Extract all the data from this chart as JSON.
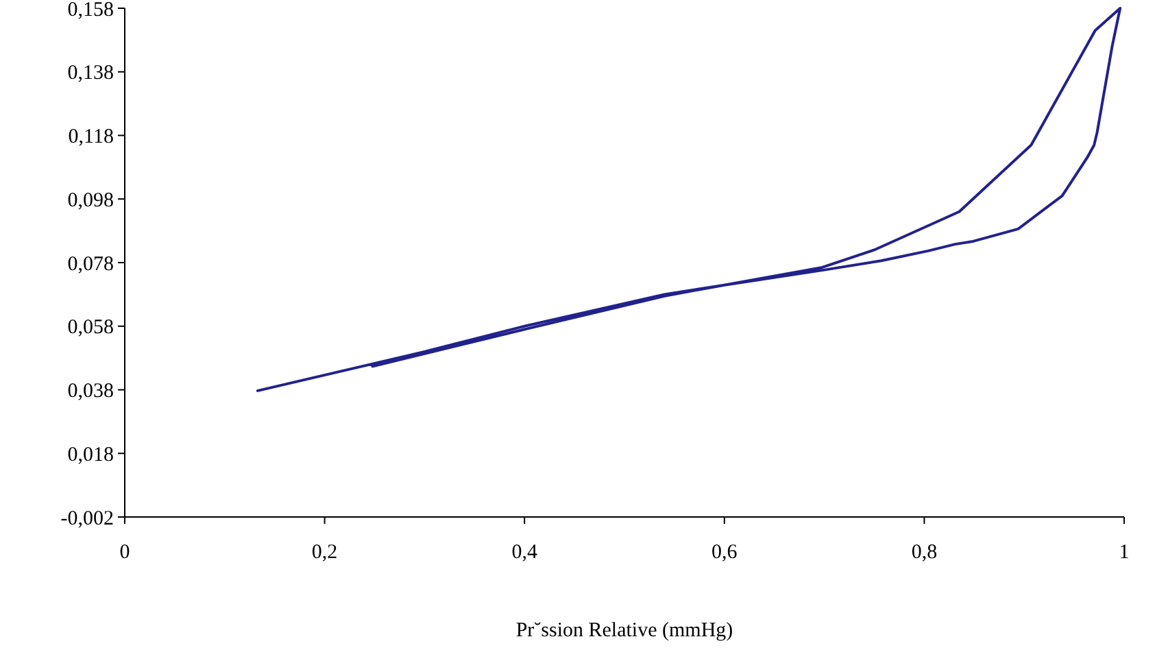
{
  "chart_data": {
    "type": "line",
    "xlabel": "Pr˘ssion Relative (mmHg)",
    "x": [
      0.248,
      0.4,
      0.54,
      0.599,
      0.698,
      0.757,
      0.804,
      0.831,
      0.849,
      0.894,
      0.938,
      0.963,
      0.97,
      0.973,
      0.988,
      0.996,
      0.971,
      0.907,
      0.835,
      0.75,
      0.698,
      0.599,
      0.54,
      0.4,
      0.3,
      0.133
    ],
    "values": [
      0.0454,
      0.057,
      0.0675,
      0.0709,
      0.0756,
      0.0786,
      0.0817,
      0.0838,
      0.0847,
      0.0886,
      0.099,
      0.111,
      0.115,
      0.119,
      0.146,
      0.158,
      0.151,
      0.115,
      0.094,
      0.082,
      0.0765,
      0.0709,
      0.068,
      0.058,
      0.05,
      0.0377
    ],
    "color": "#22228c",
    "marker": "none",
    "line_style": "solid",
    "xlim": [
      0,
      1
    ],
    "xticks": [
      0,
      {
        "value": 0.2,
        "label": "0,2"
      },
      {
        "value": 0.4,
        "label": "0,4"
      },
      {
        "value": 0.6,
        "label": "0,6"
      },
      {
        "value": 0.8,
        "label": "0,8"
      },
      1
    ],
    "ylim": [
      -0.002,
      0.158
    ],
    "yticks": [
      {
        "value": -0.002,
        "label": "-0,002"
      },
      {
        "value": 0.018,
        "label": "0,018"
      },
      {
        "value": 0.038,
        "label": "0,038"
      },
      {
        "value": 0.058,
        "label": "0,058"
      },
      {
        "value": 0.078,
        "label": "0,078"
      },
      {
        "value": 0.098,
        "label": "0,098"
      },
      {
        "value": 0.118,
        "label": "0,118"
      },
      {
        "value": 0.138,
        "label": "0,138"
      },
      {
        "value": 0.158,
        "label": "0,158"
      }
    ]
  }
}
